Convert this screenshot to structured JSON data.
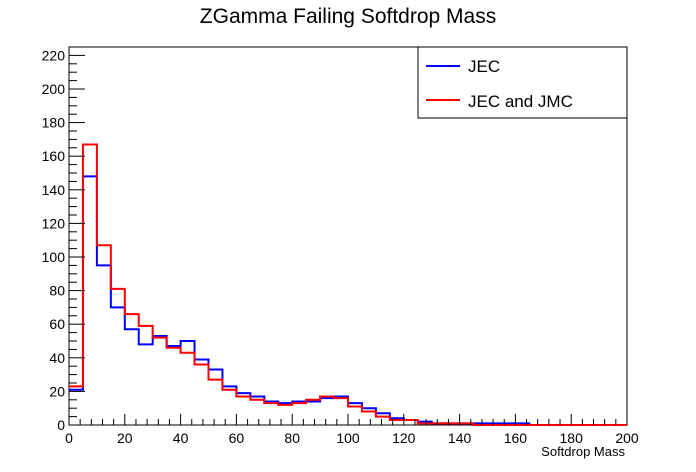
{
  "chart_data": {
    "type": "histogram",
    "title": "ZGamma Failing Softdrop Mass",
    "xlabel": "Softdrop Mass",
    "ylabel": "",
    "xlim": [
      0,
      200
    ],
    "ylim": [
      0,
      225
    ],
    "bin_width": 5,
    "x_ticks": [
      0,
      20,
      40,
      60,
      80,
      100,
      120,
      140,
      160,
      180,
      200
    ],
    "y_ticks": [
      0,
      20,
      40,
      60,
      80,
      100,
      120,
      140,
      160,
      180,
      200,
      220
    ],
    "x_tick_labels": [
      "0",
      "20",
      "40",
      "60",
      "80",
      "100",
      "120",
      "140",
      "160",
      "180",
      "200"
    ],
    "y_tick_labels": [
      "0",
      "20",
      "40",
      "60",
      "80",
      "100",
      "120",
      "140",
      "160",
      "180",
      "200",
      "220"
    ],
    "grid": false,
    "legend_position": "top-right",
    "series": [
      {
        "name": "JEC",
        "color": "#0000ff",
        "values": [
          21,
          148,
          95,
          70,
          57,
          48,
          53,
          47,
          50,
          39,
          33,
          23,
          19,
          17,
          14,
          13,
          14,
          14,
          16,
          17,
          13,
          10,
          7,
          4,
          3,
          2,
          1,
          1,
          1,
          1,
          1,
          1,
          1,
          0,
          0,
          0,
          0,
          0,
          0,
          0
        ]
      },
      {
        "name": "JEC and JMC",
        "color": "#ff0000",
        "values": [
          23,
          167,
          107,
          81,
          66,
          59,
          52,
          46,
          43,
          36,
          27,
          21,
          17,
          15,
          13,
          12,
          13,
          15,
          17,
          16,
          11,
          8,
          5,
          3,
          3,
          1,
          1,
          1,
          1,
          0,
          0,
          0,
          0,
          0,
          0,
          0,
          0,
          0,
          0,
          0
        ]
      }
    ]
  }
}
